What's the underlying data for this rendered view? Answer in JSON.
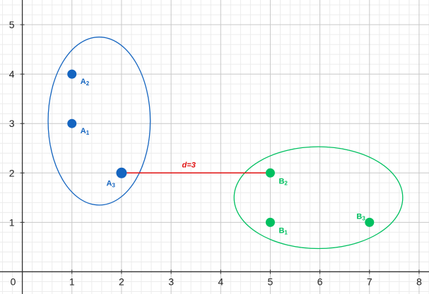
{
  "axes": {
    "x_ticks": [
      "0",
      "1",
      "2",
      "3",
      "4",
      "5",
      "6",
      "7",
      "8"
    ],
    "y_ticks": [
      "1",
      "2",
      "3",
      "4",
      "5"
    ],
    "x_range": [
      -0.45,
      8.2
    ],
    "y_range": [
      -0.45,
      5.5
    ],
    "grid": true,
    "minor_subdivisions": 5
  },
  "clusters": [
    {
      "name": "A",
      "color": "#1565c0",
      "ellipse": {
        "cx": 1.55,
        "cy": 3.05,
        "rx": 1.03,
        "ry": 1.7
      },
      "points": [
        {
          "letter": "A",
          "index": "1",
          "x": 1,
          "y": 3
        },
        {
          "letter": "A",
          "index": "2",
          "x": 1,
          "y": 4
        },
        {
          "letter": "A",
          "index": "3",
          "x": 2,
          "y": 2
        }
      ]
    },
    {
      "name": "B",
      "color": "#00c060",
      "ellipse": {
        "cx": 5.97,
        "cy": 1.5,
        "rx": 1.7,
        "ry": 1.03
      },
      "points": [
        {
          "letter": "B",
          "index": "1",
          "x": 5,
          "y": 1
        },
        {
          "letter": "B",
          "index": "2",
          "x": 5,
          "y": 2
        },
        {
          "letter": "B",
          "index": "3",
          "x": 7,
          "y": 1
        }
      ]
    }
  ],
  "distance": {
    "from": [
      2,
      2
    ],
    "to": [
      5,
      2
    ],
    "label": "d=3",
    "color": "#e01010"
  }
}
